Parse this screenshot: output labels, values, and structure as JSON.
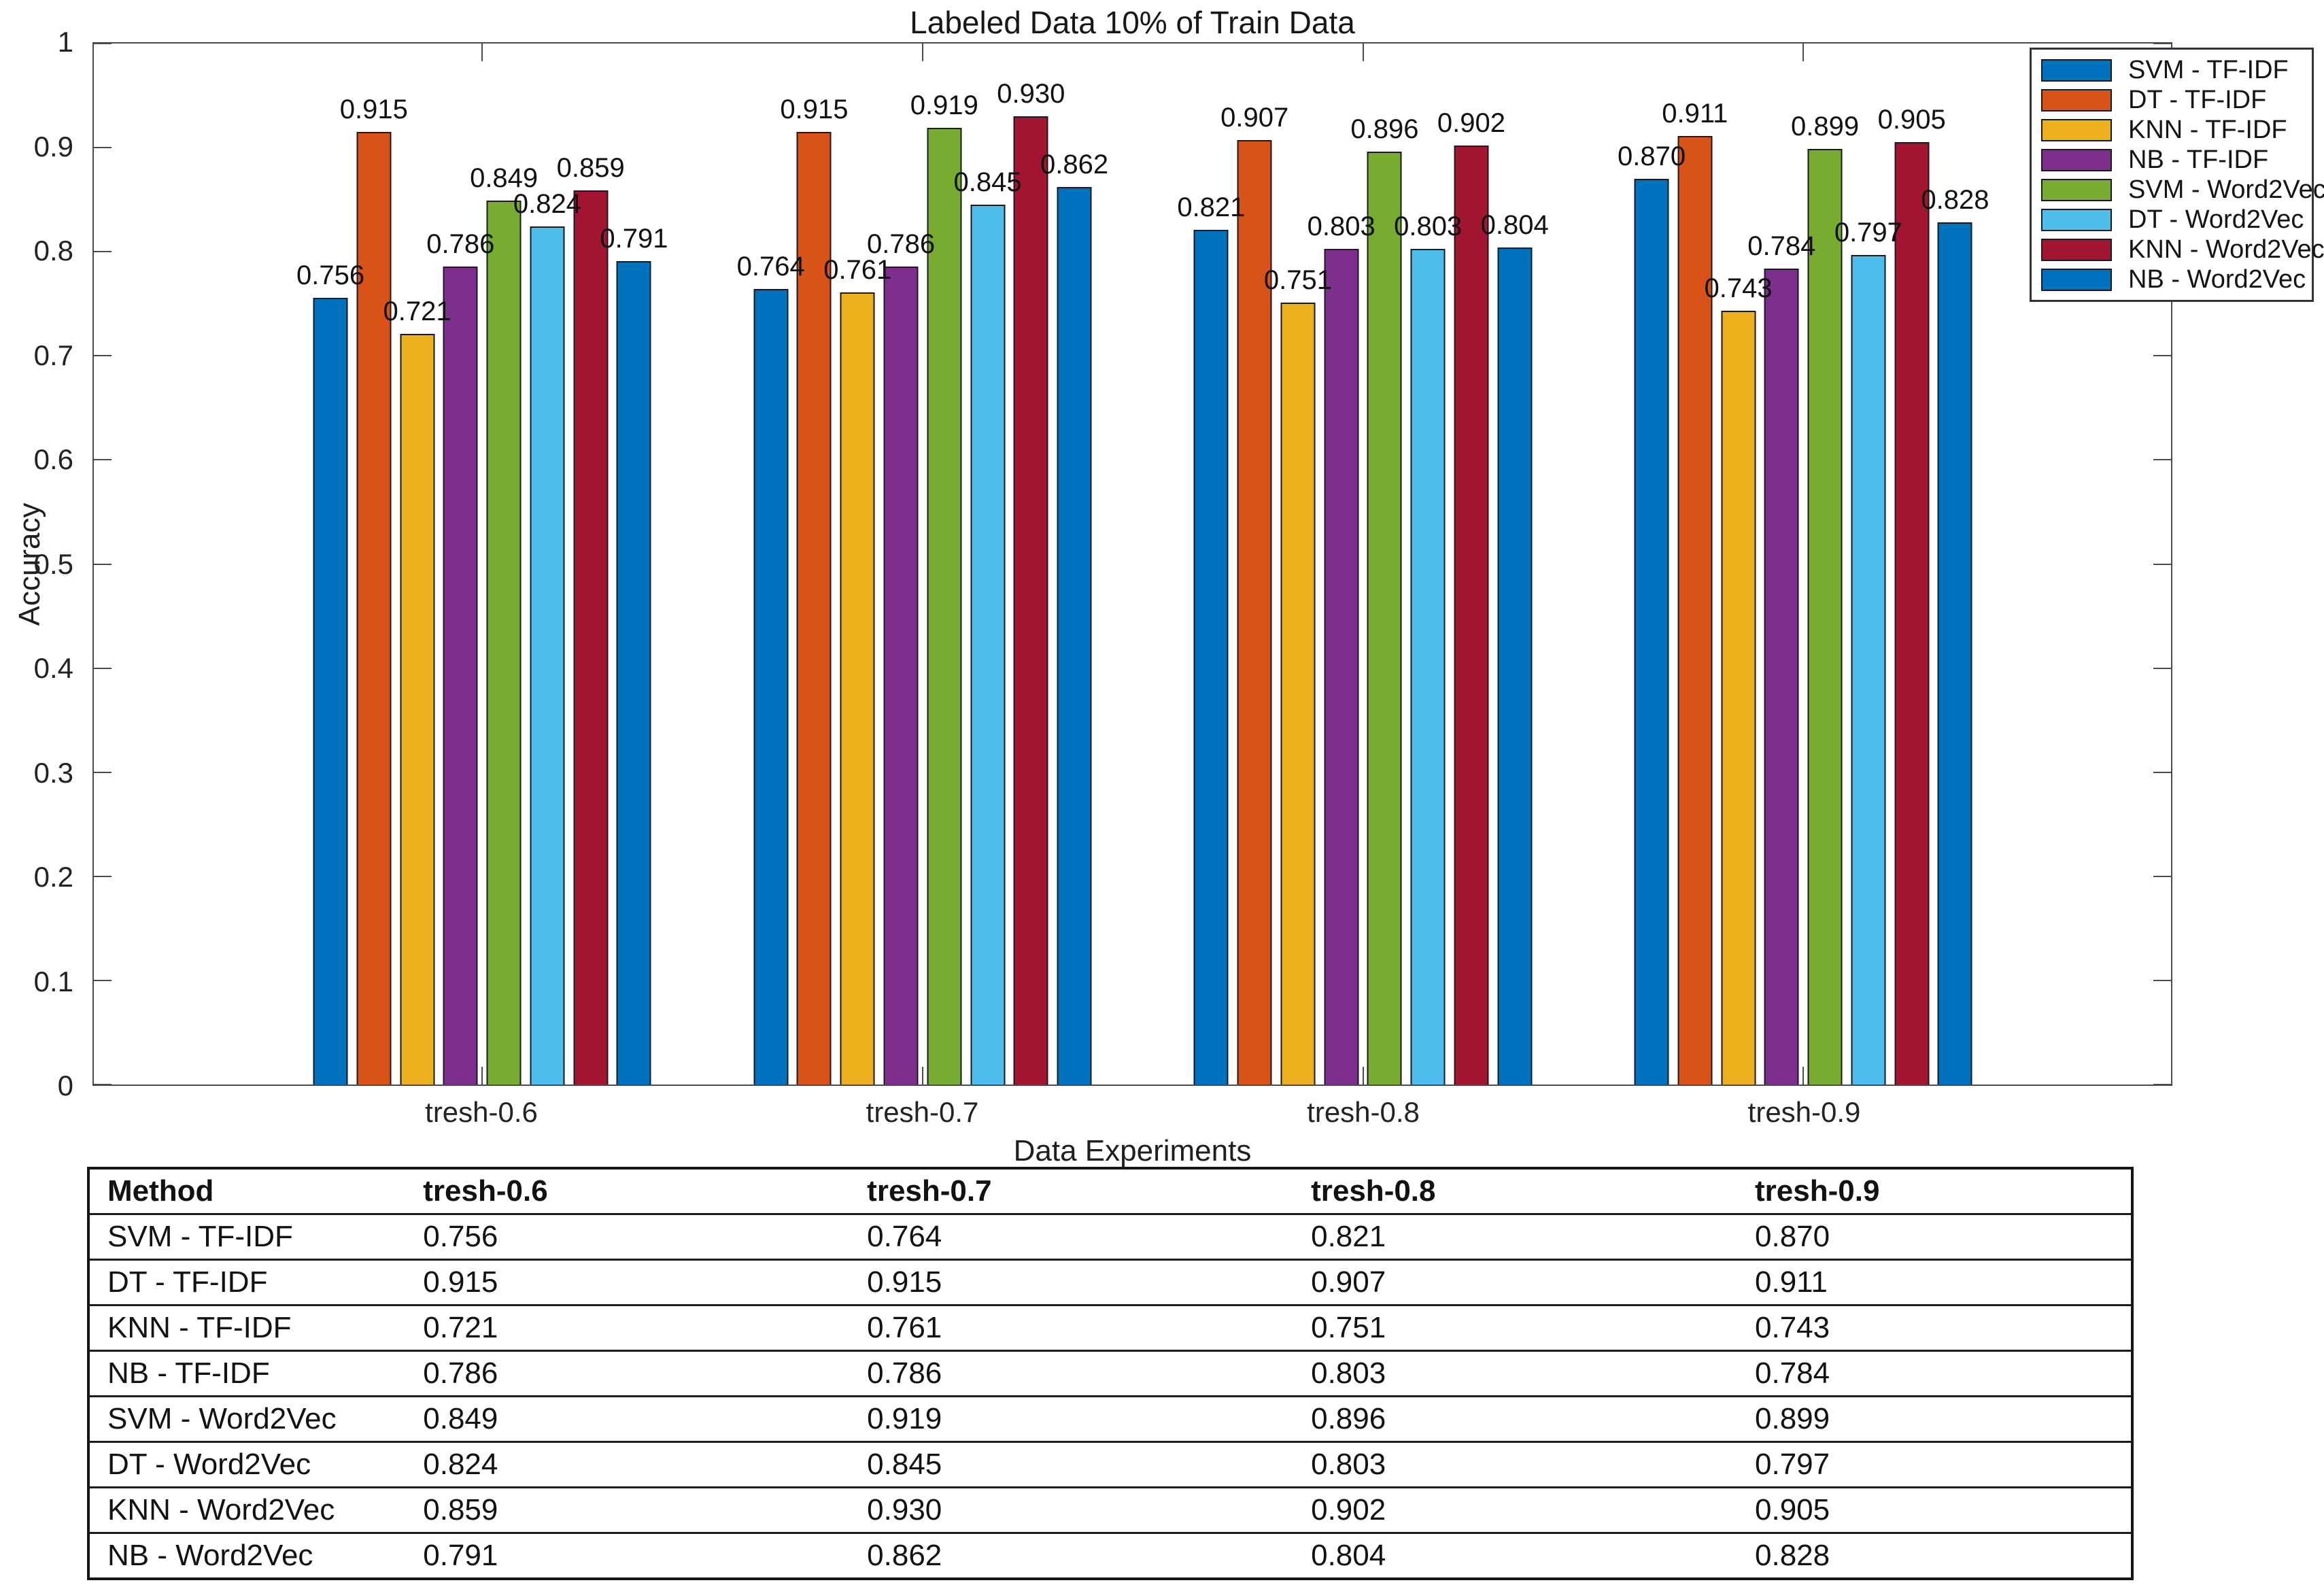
{
  "chart_data": {
    "type": "bar",
    "title": "Labeled Data 10% of Train Data",
    "xlabel": "Data Experiments",
    "ylabel": "Accuracy",
    "ylim": [
      0,
      1
    ],
    "yticks": [
      "0",
      "0.1",
      "0.2",
      "0.3",
      "0.4",
      "0.5",
      "0.6",
      "0.7",
      "0.8",
      "0.9",
      "1"
    ],
    "grid": false,
    "legend_position": "top-right",
    "bar_edge_color": "#1a1a20",
    "categories": [
      "tresh-0.6",
      "tresh-0.7",
      "tresh-0.8",
      "tresh-0.9"
    ],
    "series": [
      {
        "name": "SVM - TF-IDF",
        "color": "#0072BD",
        "values": [
          0.756,
          0.764,
          0.821,
          0.87
        ]
      },
      {
        "name": "DT - TF-IDF",
        "color": "#D95319",
        "values": [
          0.915,
          0.915,
          0.907,
          0.911
        ]
      },
      {
        "name": "KNN - TF-IDF",
        "color": "#EDB120",
        "values": [
          0.721,
          0.761,
          0.751,
          0.743
        ]
      },
      {
        "name": "NB - TF-IDF",
        "color": "#7E2F8E",
        "values": [
          0.786,
          0.786,
          0.803,
          0.784
        ]
      },
      {
        "name": "SVM - Word2Vec",
        "color": "#77AC30",
        "values": [
          0.849,
          0.919,
          0.896,
          0.899
        ]
      },
      {
        "name": "DT - Word2Vec",
        "color": "#4DBEEE",
        "values": [
          0.824,
          0.845,
          0.803,
          0.797
        ]
      },
      {
        "name": "KNN - Word2Vec",
        "color": "#A2142F",
        "values": [
          0.859,
          0.93,
          0.902,
          0.905
        ]
      },
      {
        "name": "NB - Word2Vec",
        "color": "#0072BD",
        "values": [
          0.791,
          0.862,
          0.804,
          0.828
        ]
      }
    ],
    "value_labels_decimals": 3
  },
  "table": {
    "headers": [
      "Method",
      "tresh-0.6",
      "tresh-0.7",
      "tresh-0.8",
      "tresh-0.9"
    ],
    "rows": [
      [
        "SVM - TF-IDF",
        "0.756",
        "0.764",
        "0.821",
        "0.870"
      ],
      [
        "DT - TF-IDF",
        "0.915",
        "0.915",
        "0.907",
        "0.911"
      ],
      [
        "KNN - TF-IDF",
        "0.721",
        "0.761",
        "0.751",
        "0.743"
      ],
      [
        "NB - TF-IDF",
        "0.786",
        "0.786",
        "0.803",
        "0.784"
      ],
      [
        "SVM - Word2Vec",
        "0.849",
        "0.919",
        "0.896",
        "0.899"
      ],
      [
        "DT - Word2Vec",
        "0.824",
        "0.845",
        "0.803",
        "0.797"
      ],
      [
        "KNN - Word2Vec",
        "0.859",
        "0.930",
        "0.902",
        "0.905"
      ],
      [
        "NB - Word2Vec",
        "0.791",
        "0.862",
        "0.804",
        "0.828"
      ]
    ]
  }
}
